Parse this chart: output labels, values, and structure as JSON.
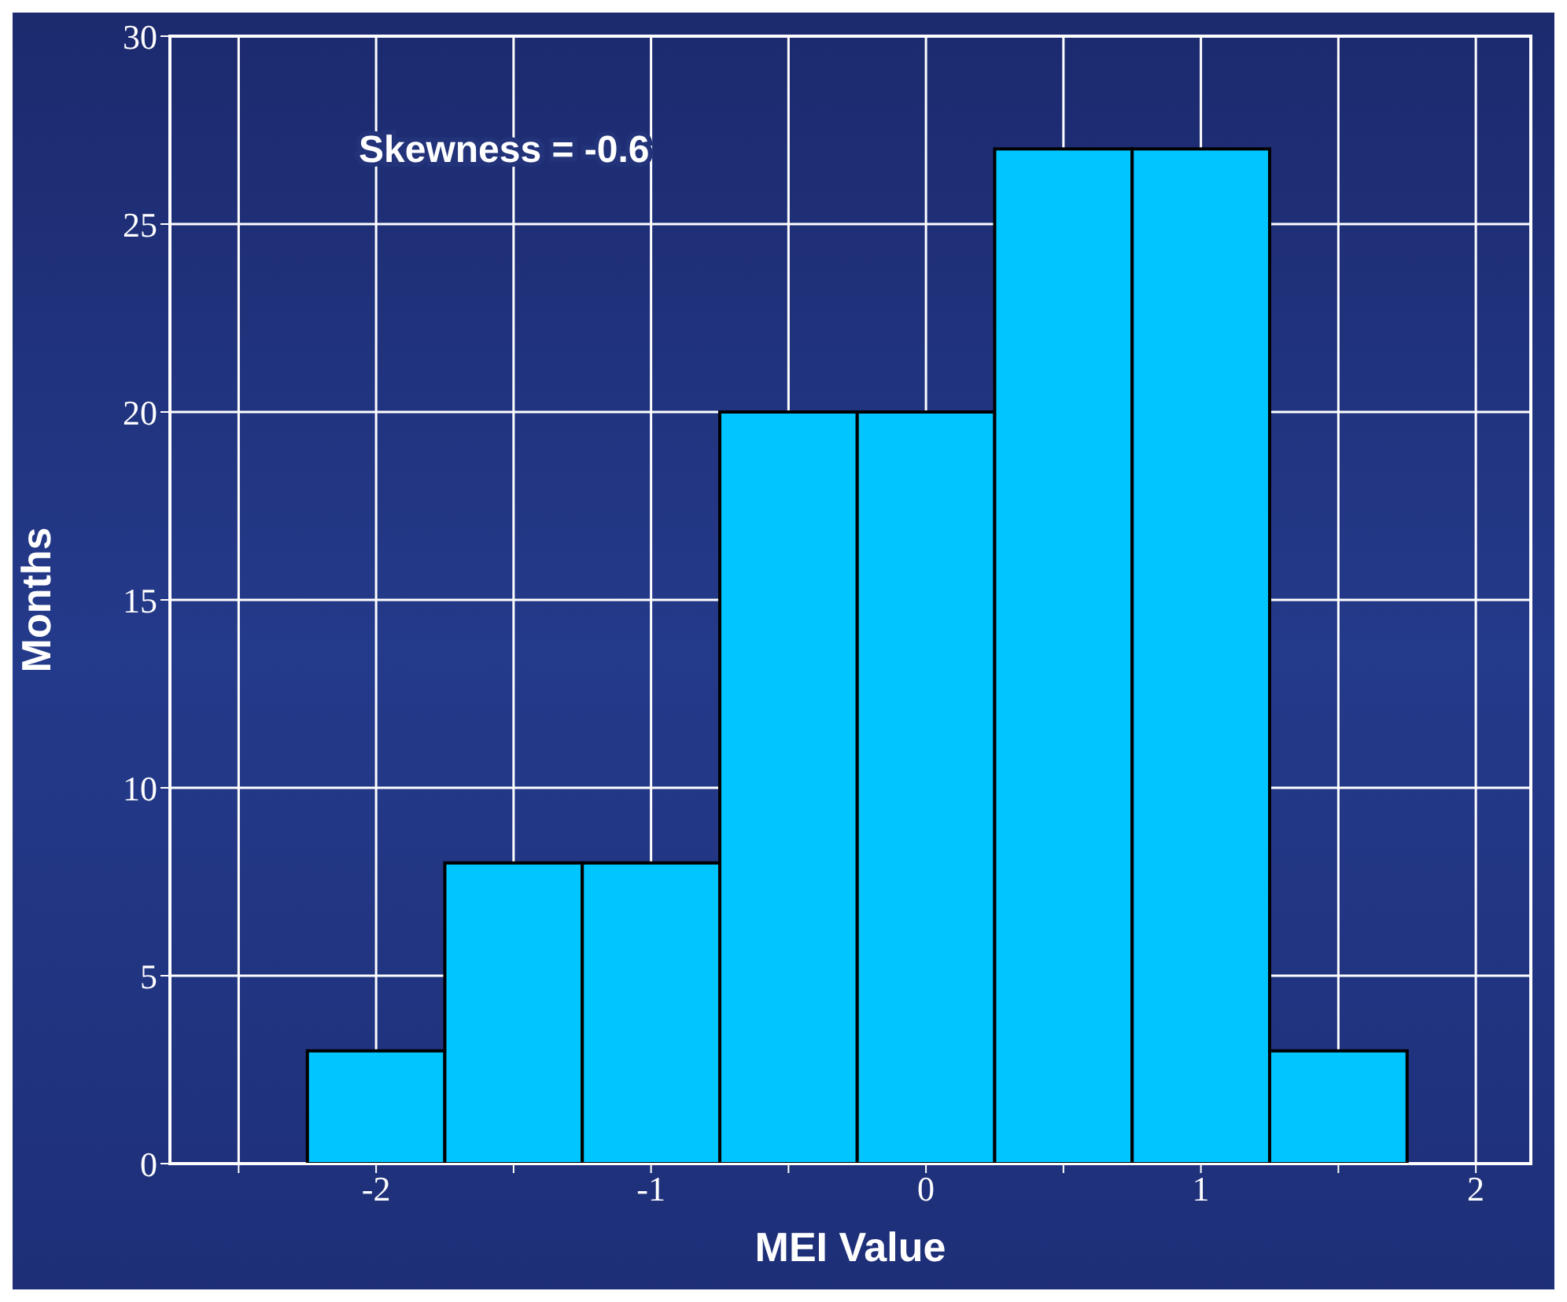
{
  "chart_data": {
    "type": "histogram",
    "xlabel": "MEI Value",
    "ylabel": "Months",
    "annotations": [
      "Skewness = -0.6"
    ],
    "bins": [
      -2.25,
      -1.75,
      -1.25,
      -0.75,
      -0.25,
      0.25,
      0.75,
      1.25,
      1.75
    ],
    "values": [
      3,
      8,
      8,
      20,
      20,
      27,
      27,
      3
    ],
    "color": "#00c5ff",
    "xlim": [
      -2.75,
      2.2
    ],
    "xticks": [
      {
        "value": -2.5,
        "label": null
      },
      -2,
      {
        "value": -1.5,
        "label": null
      },
      -1,
      {
        "value": -0.5,
        "label": null
      },
      0,
      {
        "value": 0.5,
        "label": null
      },
      1,
      {
        "value": 1.5,
        "label": null
      },
      2
    ],
    "ylim": [
      0,
      30
    ],
    "yticks": [
      0,
      5,
      10,
      15,
      20,
      25,
      30
    ],
    "grid": true
  }
}
